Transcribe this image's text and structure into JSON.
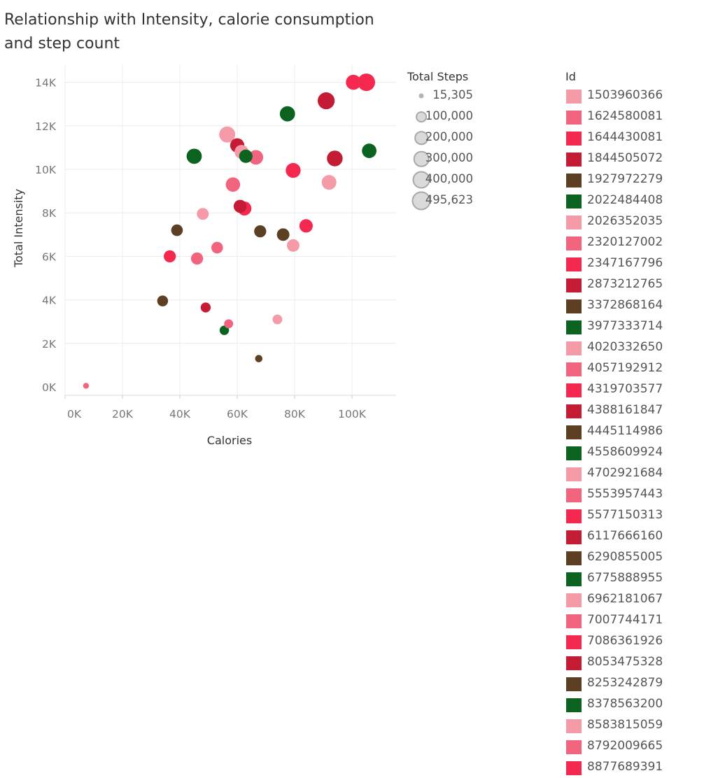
{
  "title": "Relationship with Intensity, calorie consumption and step count",
  "chart_data": {
    "type": "scatter",
    "title": "Relationship with Intensity, calorie consumption and step count",
    "xlabel": "Calories",
    "ylabel": "Total Intensity",
    "x_ticks": [
      "0K",
      "20K",
      "40K",
      "60K",
      "80K",
      "100K"
    ],
    "y_ticks": [
      "0K",
      "2K",
      "4K",
      "6K",
      "8K",
      "10K",
      "12K",
      "14K"
    ],
    "xlim": [
      0,
      114000
    ],
    "ylim": [
      0,
      15000
    ],
    "grid": true,
    "size_legend": {
      "title": "Total Steps",
      "entries": [
        "15,305",
        "100,000",
        "200,000",
        "300,000",
        "400,000",
        "495,623"
      ],
      "values": [
        15305,
        100000,
        200000,
        300000,
        400000,
        495623
      ]
    },
    "color_legend": {
      "title": "Id",
      "entries": [
        {
          "id": "1503960366",
          "color": "#f59ba8"
        },
        {
          "id": "1624580081",
          "color": "#f2637e"
        },
        {
          "id": "1644430081",
          "color": "#f5284f"
        },
        {
          "id": "1844505072",
          "color": "#c41c34"
        },
        {
          "id": "1927972279",
          "color": "#5d3f24"
        },
        {
          "id": "2022484408",
          "color": "#0c631f"
        },
        {
          "id": "2026352035",
          "color": "#f59ba8"
        },
        {
          "id": "2320127002",
          "color": "#f2637e"
        },
        {
          "id": "2347167796",
          "color": "#f5284f"
        },
        {
          "id": "2873212765",
          "color": "#c41c34"
        },
        {
          "id": "3372868164",
          "color": "#5d3f24"
        },
        {
          "id": "3977333714",
          "color": "#0c631f"
        },
        {
          "id": "4020332650",
          "color": "#f59ba8"
        },
        {
          "id": "4057192912",
          "color": "#f2637e"
        },
        {
          "id": "4319703577",
          "color": "#f5284f"
        },
        {
          "id": "4388161847",
          "color": "#c41c34"
        },
        {
          "id": "4445114986",
          "color": "#5d3f24"
        },
        {
          "id": "4558609924",
          "color": "#0c631f"
        },
        {
          "id": "4702921684",
          "color": "#f59ba8"
        },
        {
          "id": "5553957443",
          "color": "#f2637e"
        },
        {
          "id": "5577150313",
          "color": "#f5284f"
        },
        {
          "id": "6117666160",
          "color": "#c41c34"
        },
        {
          "id": "6290855005",
          "color": "#5d3f24"
        },
        {
          "id": "6775888955",
          "color": "#0c631f"
        },
        {
          "id": "6962181067",
          "color": "#f59ba8"
        },
        {
          "id": "7007744171",
          "color": "#f2637e"
        },
        {
          "id": "7086361926",
          "color": "#f5284f"
        },
        {
          "id": "8053475328",
          "color": "#c41c34"
        },
        {
          "id": "8253242879",
          "color": "#5d3f24"
        },
        {
          "id": "8378563200",
          "color": "#0c631f"
        },
        {
          "id": "8583815059",
          "color": "#f59ba8"
        },
        {
          "id": "8792009665",
          "color": "#f2637e"
        },
        {
          "id": "8877689391",
          "color": "#f5284f"
        }
      ]
    },
    "points": [
      {
        "x": 7300,
        "y": 50,
        "steps": 15305,
        "color": "#f2637e"
      },
      {
        "x": 34000,
        "y": 3950,
        "steps": 140000,
        "color": "#5d3f24"
      },
      {
        "x": 39000,
        "y": 7200,
        "steps": 170000,
        "color": "#5d3f24"
      },
      {
        "x": 36500,
        "y": 6000,
        "steps": 190000,
        "color": "#f5284f"
      },
      {
        "x": 45000,
        "y": 10600,
        "steps": 350000,
        "color": "#0c631f"
      },
      {
        "x": 46000,
        "y": 5900,
        "steps": 190000,
        "color": "#f2637e"
      },
      {
        "x": 48000,
        "y": 7950,
        "steps": 180000,
        "color": "#f59ba8"
      },
      {
        "x": 49000,
        "y": 3650,
        "steps": 110000,
        "color": "#c41c34"
      },
      {
        "x": 53000,
        "y": 6400,
        "steps": 170000,
        "color": "#f2637e"
      },
      {
        "x": 55500,
        "y": 2600,
        "steps": 90000,
        "color": "#0c631f"
      },
      {
        "x": 56500,
        "y": 11600,
        "steps": 400000,
        "color": "#f59ba8"
      },
      {
        "x": 57000,
        "y": 2900,
        "steps": 80000,
        "color": "#f2637e"
      },
      {
        "x": 58500,
        "y": 9300,
        "steps": 300000,
        "color": "#f2637e"
      },
      {
        "x": 60000,
        "y": 11100,
        "steps": 290000,
        "color": "#c41c34"
      },
      {
        "x": 61000,
        "y": 8300,
        "steps": 230000,
        "color": "#c41c34"
      },
      {
        "x": 62500,
        "y": 8200,
        "steps": 280000,
        "color": "#f5284f"
      },
      {
        "x": 61500,
        "y": 10800,
        "steps": 280000,
        "color": "#f59ba8"
      },
      {
        "x": 63000,
        "y": 10600,
        "steps": 250000,
        "color": "#0c631f"
      },
      {
        "x": 66500,
        "y": 10550,
        "steps": 310000,
        "color": "#f2637e"
      },
      {
        "x": 67500,
        "y": 1300,
        "steps": 40000,
        "color": "#5d3f24"
      },
      {
        "x": 68000,
        "y": 7150,
        "steps": 190000,
        "color": "#5d3f24"
      },
      {
        "x": 74000,
        "y": 3100,
        "steps": 100000,
        "color": "#f59ba8"
      },
      {
        "x": 76000,
        "y": 7000,
        "steps": 210000,
        "color": "#5d3f24"
      },
      {
        "x": 77500,
        "y": 12550,
        "steps": 350000,
        "color": "#0c631f"
      },
      {
        "x": 79500,
        "y": 9950,
        "steps": 330000,
        "color": "#f5284f"
      },
      {
        "x": 79500,
        "y": 6500,
        "steps": 210000,
        "color": "#f59ba8"
      },
      {
        "x": 84000,
        "y": 7400,
        "steps": 250000,
        "color": "#f5284f"
      },
      {
        "x": 91000,
        "y": 13150,
        "steps": 460000,
        "color": "#c41c34"
      },
      {
        "x": 92000,
        "y": 9400,
        "steps": 320000,
        "color": "#f59ba8"
      },
      {
        "x": 94000,
        "y": 10500,
        "steps": 380000,
        "color": "#c41c34"
      },
      {
        "x": 100500,
        "y": 14000,
        "steps": 340000,
        "color": "#f5284f"
      },
      {
        "x": 105000,
        "y": 14000,
        "steps": 495623,
        "color": "#f5284f"
      },
      {
        "x": 106000,
        "y": 10850,
        "steps": 310000,
        "color": "#0c631f"
      }
    ]
  }
}
